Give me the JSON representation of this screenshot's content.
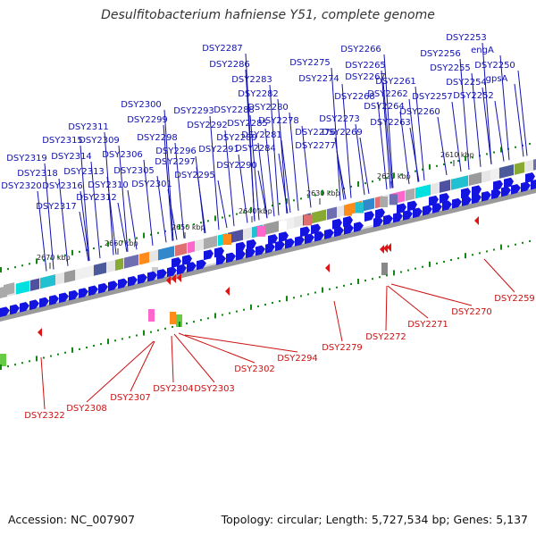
{
  "title": "Desulfitobacterium hafniense Y51, complete genome",
  "footer": {
    "accession": "Accession: NC_007907",
    "topology": "Topology: circular; Length: 5,727,534 bp; Genes: 5,137"
  },
  "ticks": [
    "2610 kbp",
    "2620 kbp",
    "2630 kbp",
    "2640 kbp",
    "2650 kbp",
    "2660 kbp",
    "2670 kbp"
  ],
  "top_labels": [
    "DSY2253",
    "engA",
    "DSY2256",
    "DSY2255",
    "DSY2250",
    "DSY2254",
    "gpsA",
    "DSY2257",
    "DSY2252",
    "DSY2266",
    "DSY2265",
    "DSY2267",
    "DSY2261",
    "DSY2262",
    "DSY2268",
    "DSY2264",
    "DSY2260",
    "DSY2263",
    "DSY2275",
    "DSY2274",
    "DSY2273",
    "DSY2269",
    "DSY2276",
    "DSY2277",
    "DSY2287",
    "DSY2286",
    "DSY2283",
    "DSY2282",
    "DSY2280",
    "DSY2278",
    "DSY2288",
    "DSY2285",
    "DSY2281",
    "DSY2289",
    "DSY2284",
    "DSY2293",
    "DSY2292",
    "DSY2291",
    "DSY2290",
    "DSY2300",
    "DSY2299",
    "DSY2298",
    "DSY2296",
    "DSY2297",
    "DSY2295",
    "DSY2311",
    "DSY2315",
    "DSY2309",
    "DSY2306",
    "DSY2305",
    "DSY2301",
    "DSY2319",
    "DSY2314",
    "DSY2318",
    "DSY2313",
    "DSY2320",
    "DSY2316",
    "DSY2310",
    "DSY2312",
    "DSY2317"
  ],
  "bottom_labels": [
    "DSY2259",
    "DSY2270",
    "DSY2271",
    "DSY2272",
    "DSY2279",
    "DSY2294",
    "DSY2302",
    "DSY2303",
    "DSY2304",
    "DSY2307",
    "DSY2308",
    "DSY2322"
  ],
  "colors": {
    "forward": "#1414e0",
    "reverse": "#e01414",
    "top_label": "#1010b0",
    "bottom_label": "#cc1111",
    "backbone": "#9a9a9a"
  }
}
